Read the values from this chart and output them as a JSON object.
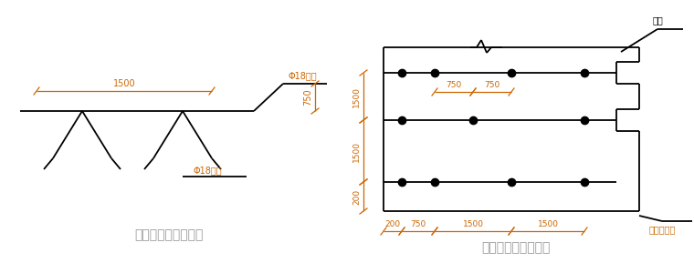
{
  "title_left": "马凳加工形状示意图",
  "title_right": "马凳平面布置示意图",
  "label_top_steel": "Φ18钉筋",
  "label_bot_steel": "Φ18钉筋",
  "label_zhidian": "支点",
  "label_jichu": "基础外边线",
  "bg_color": "#ffffff",
  "line_color": "#000000",
  "dim_color": "#cc6600",
  "dot_color": "#000000",
  "title_color": "#999999",
  "font_size_title": 10,
  "font_size_label": 7,
  "font_size_dim": 7
}
